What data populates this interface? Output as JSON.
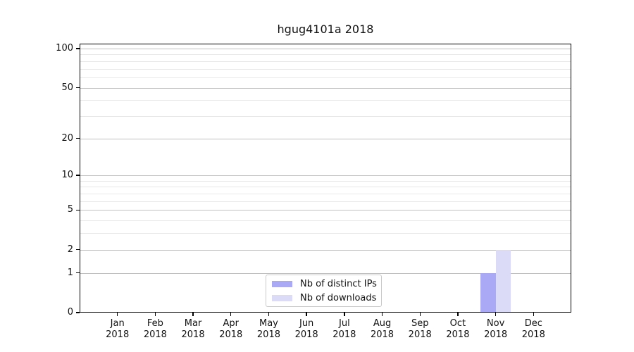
{
  "chart_data": {
    "type": "bar",
    "title": "hgug4101a 2018",
    "categories": [
      {
        "month": "Jan",
        "year": "2018"
      },
      {
        "month": "Feb",
        "year": "2018"
      },
      {
        "month": "Mar",
        "year": "2018"
      },
      {
        "month": "Apr",
        "year": "2018"
      },
      {
        "month": "May",
        "year": "2018"
      },
      {
        "month": "Jun",
        "year": "2018"
      },
      {
        "month": "Jul",
        "year": "2018"
      },
      {
        "month": "Aug",
        "year": "2018"
      },
      {
        "month": "Sep",
        "year": "2018"
      },
      {
        "month": "Oct",
        "year": "2018"
      },
      {
        "month": "Nov",
        "year": "2018"
      },
      {
        "month": "Dec",
        "year": "2018"
      }
    ],
    "series": [
      {
        "name": "Nb of distinct IPs",
        "color": "#a9a9f5",
        "values": [
          0,
          0,
          0,
          0,
          0,
          0,
          0,
          0,
          0,
          0,
          1,
          0
        ]
      },
      {
        "name": "Nb of downloads",
        "color": "#dbdbf8",
        "values": [
          0,
          0,
          0,
          0,
          0,
          0,
          0,
          0,
          0,
          0,
          2,
          0
        ]
      }
    ],
    "xlabel": "",
    "ylabel": "",
    "yscale": "log1p",
    "ylim": [
      0,
      100
    ],
    "yticks": [
      0,
      1,
      2,
      5,
      10,
      20,
      50,
      100
    ],
    "ytick_labels": [
      "0",
      "1",
      "2",
      "5",
      "10",
      "20",
      "50",
      "100"
    ],
    "minor_gridlines": [
      3,
      4,
      6,
      7,
      8,
      9,
      30,
      40,
      60,
      70,
      80,
      90
    ],
    "grid": true,
    "legend_position": "lower center (inside plot)",
    "colors": {
      "major_grid": "#c0c0c0",
      "minor_grid": "#e8e8e8",
      "spine": "#000000",
      "background": "#ffffff",
      "text": "#111111"
    }
  }
}
